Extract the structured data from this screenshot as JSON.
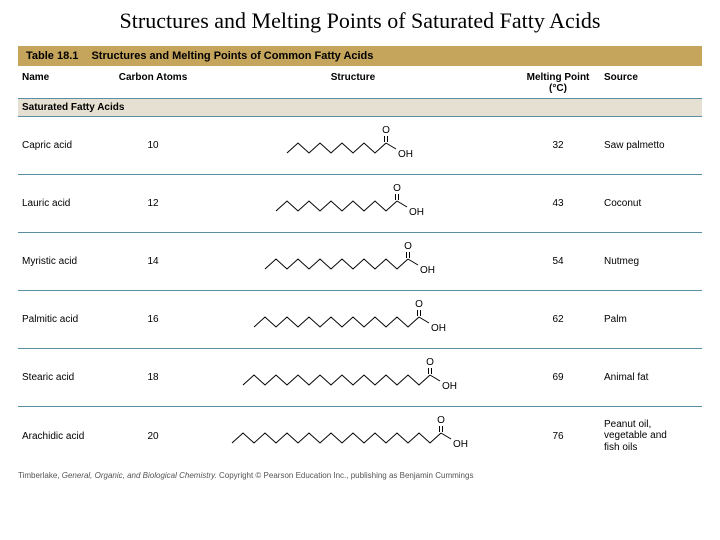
{
  "pageTitle": "Structures and Melting Points of Saturated Fatty Acids",
  "tableHeader": {
    "label": "Table 18.1",
    "title": "Structures and Melting Points of Common Fatty Acids"
  },
  "columns": {
    "name": "Name",
    "carbon": "Carbon\nAtoms",
    "structure": "Structure",
    "mp": "Melting\nPoint (°C)",
    "source": "Source"
  },
  "subheader": "Saturated Fatty Acids",
  "chain": {
    "segLen": 11,
    "amp": 5,
    "stroke": "#000000",
    "strokeWidth": 1,
    "oLabel": "O",
    "ohLabel": "OH",
    "atomFontSize": 10
  },
  "acids": [
    {
      "name": "Capric acid",
      "carbons": "10",
      "nC": 10,
      "mp": "32",
      "source": "Saw palmetto"
    },
    {
      "name": "Lauric acid",
      "carbons": "12",
      "nC": 12,
      "mp": "43",
      "source": "Coconut"
    },
    {
      "name": "Myristic acid",
      "carbons": "14",
      "nC": 14,
      "mp": "54",
      "source": "Nutmeg"
    },
    {
      "name": "Palmitic acid",
      "carbons": "16",
      "nC": 16,
      "mp": "62",
      "source": "Palm"
    },
    {
      "name": "Stearic acid",
      "carbons": "18",
      "nC": 18,
      "mp": "69",
      "source": "Animal fat"
    },
    {
      "name": "Arachidic acid",
      "carbons": "20",
      "nC": 20,
      "mp": "76",
      "source": "Peanut oil, vegetable and fish oils"
    }
  ],
  "footer": {
    "author": "Timberlake, ",
    "book": "General, Organic, and Biological Chemistry.",
    "rest": " Copyright © Pearson Education Inc., publishing as Benjamin Cummings"
  },
  "colors": {
    "headerBar": "#c5a45b",
    "subheaderBg": "#e6e0d2",
    "rule": "#5a8fa3",
    "text": "#000000",
    "footerText": "#555555",
    "background": "#ffffff"
  }
}
